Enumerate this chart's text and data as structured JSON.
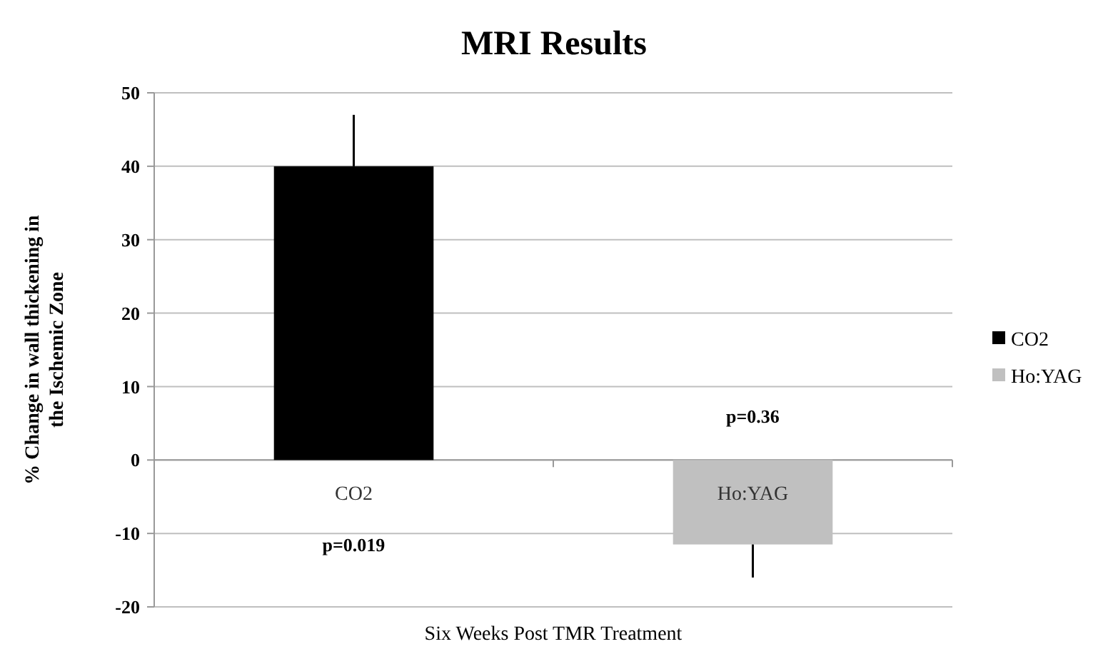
{
  "chart_data": {
    "type": "bar",
    "title": "MRI Results",
    "xlabel": "Six Weeks Post TMR Treatment",
    "ylabel": "% Change in wall thickening in the Ischemic Zone",
    "categories": [
      "CO2",
      "Ho:YAG"
    ],
    "series": [
      {
        "name": "CO2",
        "color": "#000000",
        "values": [
          40,
          null
        ],
        "errors": [
          [
            40,
            47
          ],
          null
        ]
      },
      {
        "name": "Ho:YAG",
        "color": "#c0c0c0",
        "values": [
          null,
          -11.5
        ],
        "errors": [
          null,
          [
            -16,
            -11.5
          ]
        ]
      }
    ],
    "ylim": [
      -20,
      50
    ],
    "yticks": [
      -20,
      -10,
      0,
      10,
      20,
      30,
      40,
      50
    ],
    "grid": "y",
    "legend": "right",
    "annotations": [
      "p=0.019",
      "p=0.36"
    ]
  }
}
